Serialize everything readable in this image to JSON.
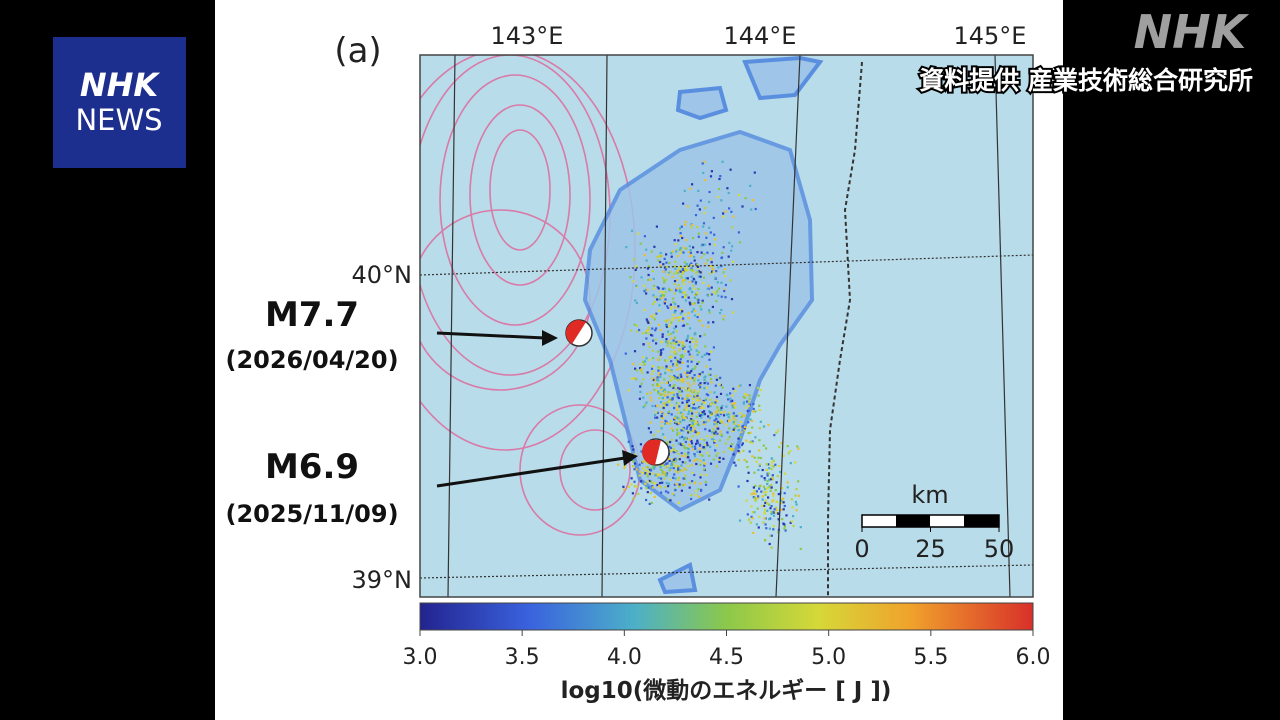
{
  "logo": {
    "top": "NHK",
    "bottom": "NEWS"
  },
  "watermark": "NHK",
  "credit": "資料提供 産業技術総合研究所",
  "figure": {
    "panel_label": "(a)",
    "lon_labels": [
      "143°E",
      "144°E",
      "145°E"
    ],
    "lat_labels": [
      "40°N",
      "39°N"
    ],
    "events": [
      {
        "magnitude": "M7.7",
        "date": "(2026/04/20)"
      },
      {
        "magnitude": "M6.9",
        "date": "(2025/11/09)"
      }
    ],
    "scale_bar": {
      "unit": "km",
      "ticks": [
        0,
        25,
        50
      ]
    },
    "colorbar": {
      "label": "log10(微動のエネルギー [ J ])",
      "lim": [
        3,
        6
      ],
      "ticks": [
        {
          "value": 3,
          "label": "3.0"
        },
        {
          "value": 3.5,
          "label": "3.5"
        },
        {
          "value": 4,
          "label": "4.0"
        },
        {
          "value": 4.5,
          "label": "4.5"
        },
        {
          "value": 5,
          "label": "5.0"
        },
        {
          "value": 5.5,
          "label": "5.5"
        },
        {
          "value": 6,
          "label": "6.0"
        }
      ]
    }
  }
}
